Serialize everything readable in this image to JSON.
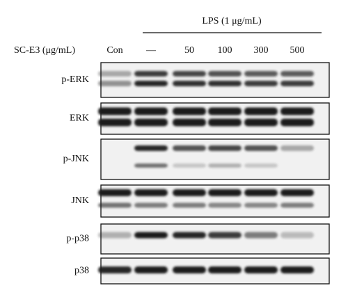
{
  "header": {
    "treatment": "LPS (1 μg/mL)"
  },
  "dose_label": "SC-E3 (μg/mL)",
  "lanes": [
    "Con",
    "—",
    "50",
    "100",
    "300",
    "500"
  ],
  "blots": [
    {
      "label": "p-ERK"
    },
    {
      "label": "ERK"
    },
    {
      "label": "p-JNK"
    },
    {
      "label": "JNK"
    },
    {
      "label": "p-p38"
    },
    {
      "label": "p38"
    }
  ]
}
